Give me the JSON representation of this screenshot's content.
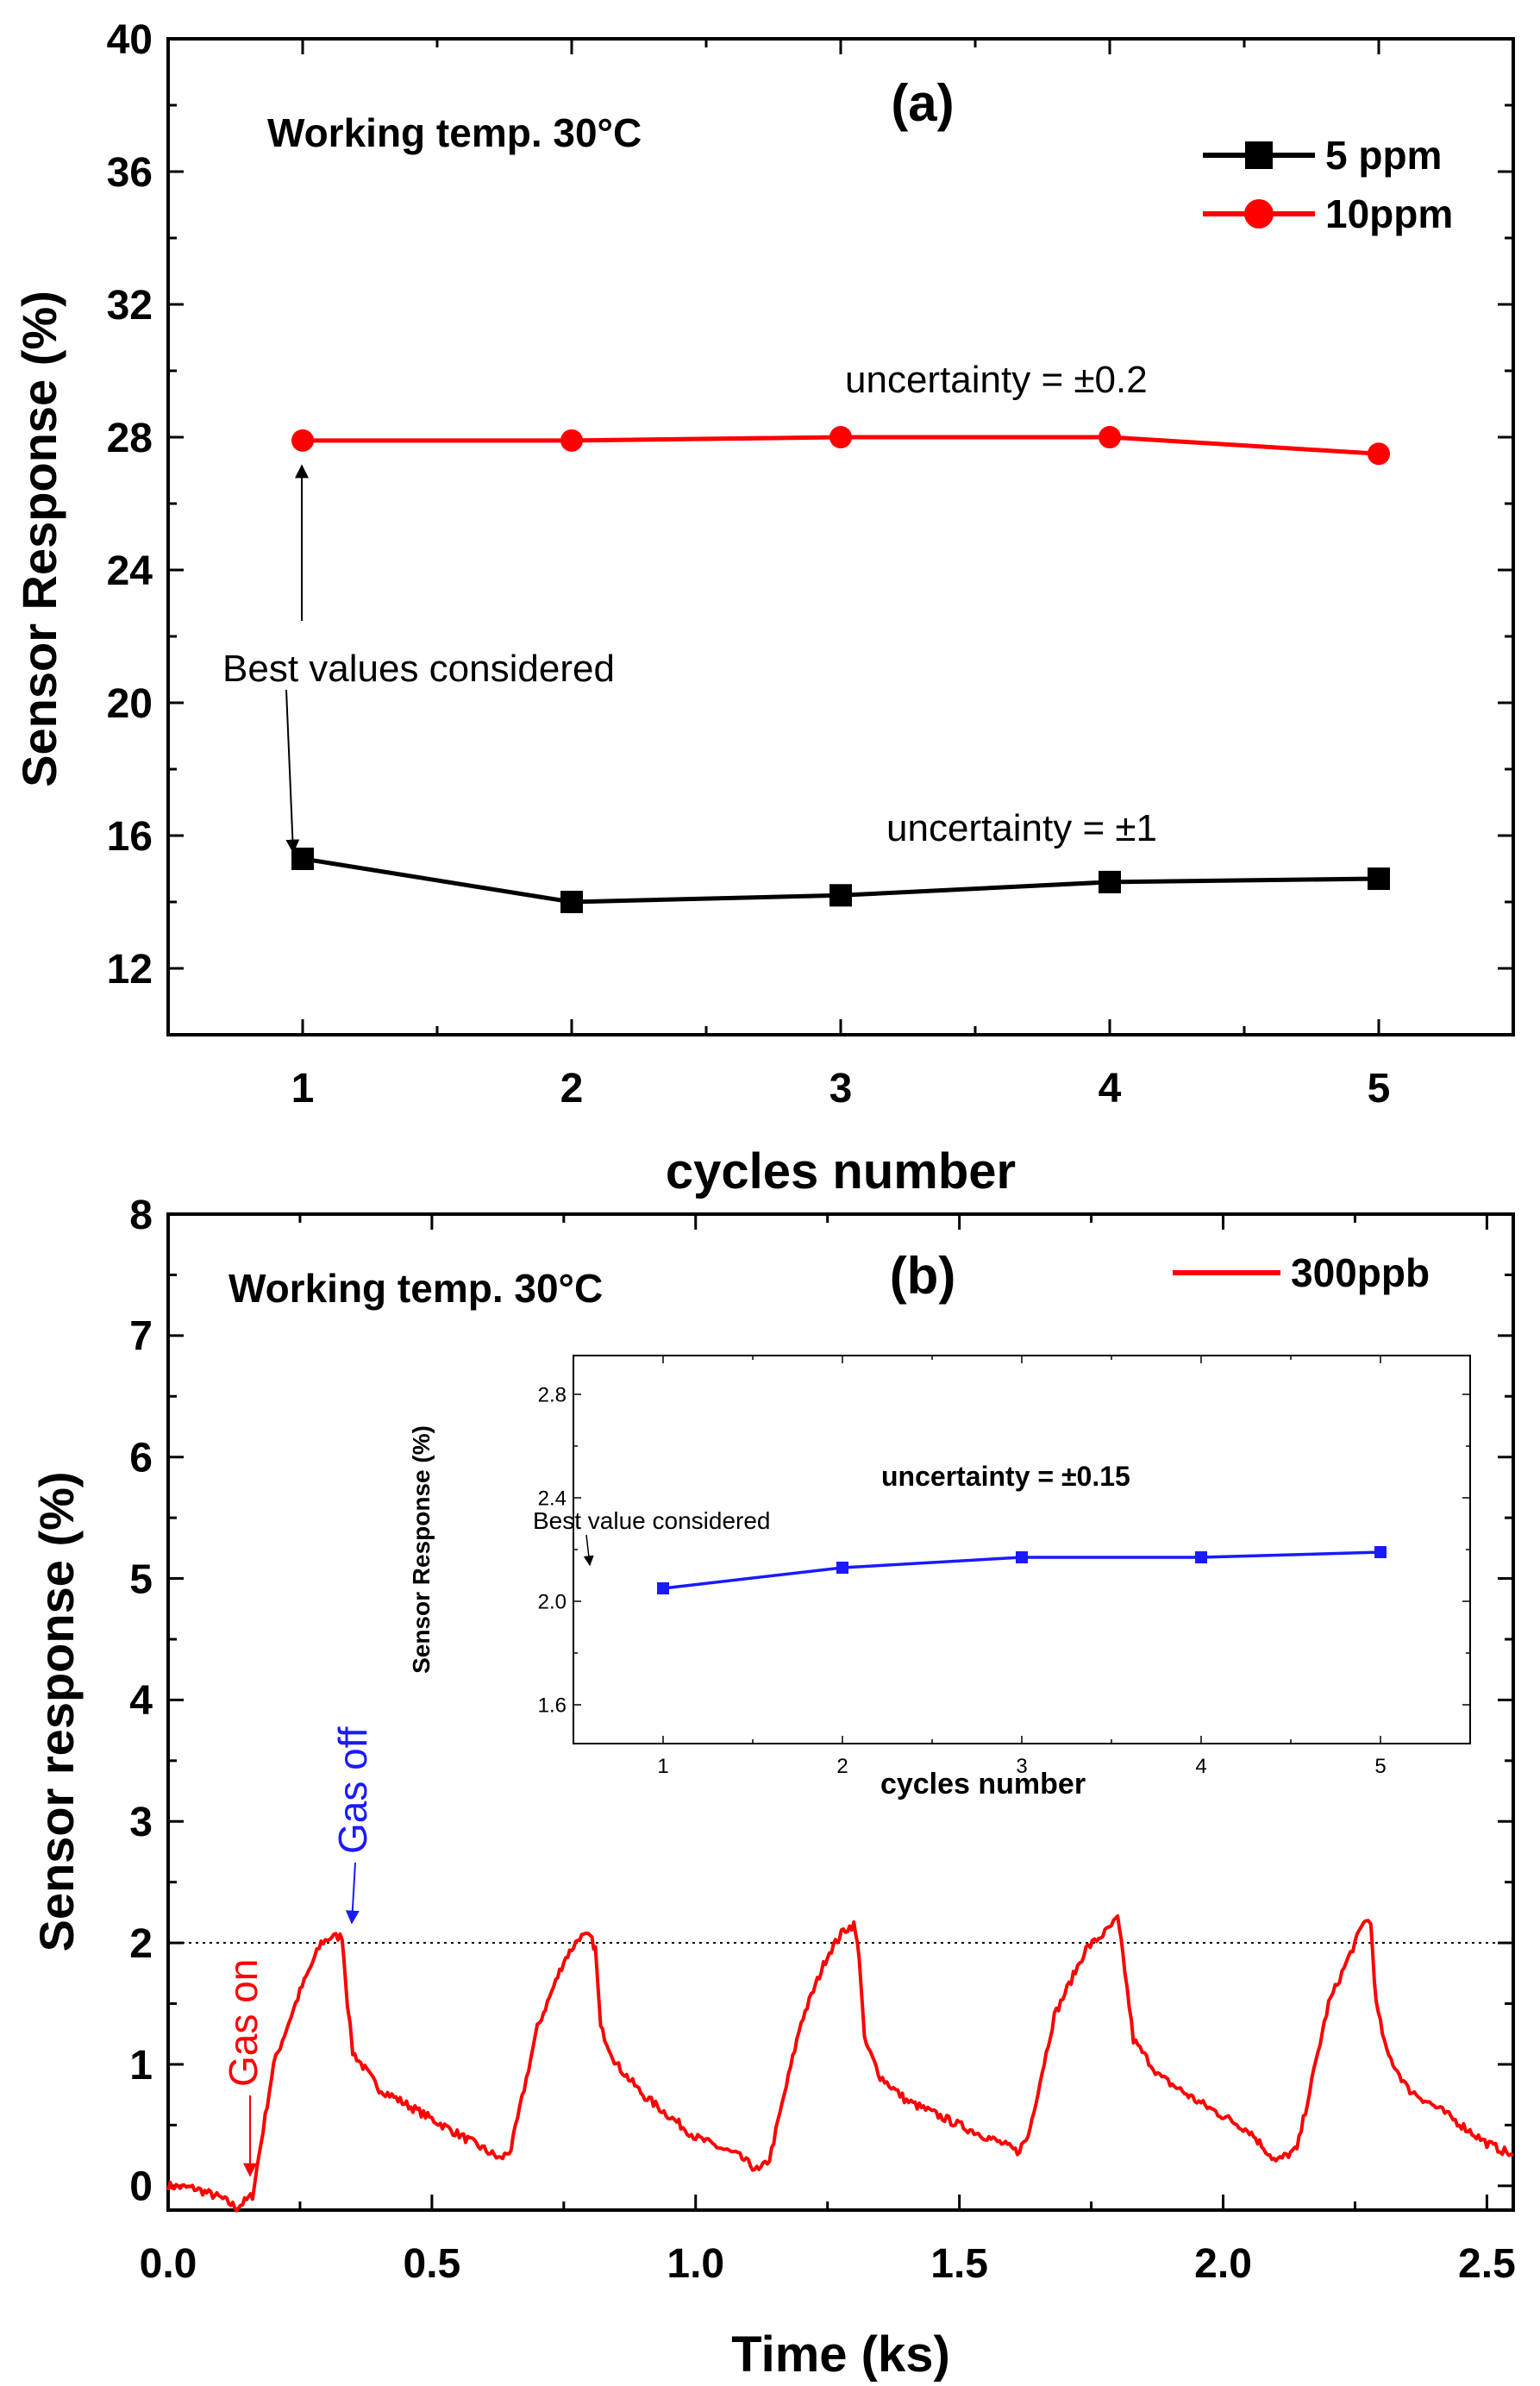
{
  "chart_data": [
    {
      "type": "line",
      "panel_label": "(a)",
      "annotation_temp": "Working temp. 30°C",
      "xlabel": "cycles number",
      "ylabel": "Sensor Response (%)",
      "xlim": [
        0.5,
        5.5
      ],
      "ylim": [
        10,
        40
      ],
      "xticks": [
        1,
        2,
        3,
        4,
        5
      ],
      "yticks": [
        12,
        16,
        20,
        24,
        28,
        32,
        36,
        40
      ],
      "legend_position": "top-right",
      "series": [
        {
          "name": "5 ppm",
          "color": "#000000",
          "marker": "square",
          "x": [
            1,
            2,
            3,
            4,
            5
          ],
          "y": [
            15.3,
            14.0,
            14.2,
            14.6,
            14.7
          ]
        },
        {
          "name": "10ppm",
          "color": "#ff0000",
          "marker": "circle",
          "x": [
            1,
            2,
            3,
            4,
            5
          ],
          "y": [
            27.9,
            27.9,
            28.0,
            28.0,
            27.5
          ]
        }
      ],
      "annotations": {
        "uncertainty_10ppm": "uncertainty = ±0.2",
        "uncertainty_5ppm": "uncertainty    = ±1",
        "best_values": "Best values considered"
      }
    },
    {
      "type": "line",
      "panel_label": "(b)",
      "annotation_temp": "Working temp. 30°C",
      "xlabel": "Time (ks)",
      "ylabel": "Sensor response (%)",
      "xlim": [
        0.0,
        2.55
      ],
      "ylim": [
        -0.2,
        8
      ],
      "xticks": [
        0.0,
        0.5,
        1.0,
        1.5,
        2.0,
        2.5
      ],
      "yticks": [
        0,
        1,
        2,
        3,
        4,
        5,
        6,
        7,
        8
      ],
      "reference_line_y": 2,
      "legend_position": "top-right",
      "series": [
        {
          "name": "300ppb",
          "color": "#ff0000",
          "x": [
            0.0,
            0.05,
            0.1,
            0.13,
            0.16,
            0.2,
            0.25,
            0.29,
            0.31,
            0.33,
            0.34,
            0.35,
            0.4,
            0.5,
            0.58,
            0.63,
            0.65,
            0.7,
            0.75,
            0.78,
            0.8,
            0.81,
            0.82,
            0.85,
            0.9,
            1.0,
            1.08,
            1.12,
            1.14,
            1.2,
            1.25,
            1.28,
            1.3,
            1.31,
            1.32,
            1.35,
            1.4,
            1.5,
            1.58,
            1.61,
            1.63,
            1.68,
            1.74,
            1.78,
            1.8,
            1.81,
            1.83,
            1.88,
            1.95,
            2.05,
            2.1,
            2.14,
            2.2,
            2.25,
            2.27,
            2.28,
            2.29,
            2.31,
            2.35,
            2.42,
            2.5,
            2.55
          ],
          "y": [
            0.0,
            -0.02,
            -0.1,
            -0.18,
            -0.08,
            1.0,
            1.6,
            2.0,
            2.05,
            2.05,
            1.5,
            1.1,
            0.8,
            0.55,
            0.35,
            0.22,
            0.3,
            1.3,
            1.85,
            2.05,
            2.05,
            1.95,
            1.3,
            1.0,
            0.75,
            0.4,
            0.25,
            0.12,
            0.22,
            1.35,
            1.9,
            2.1,
            2.15,
            1.9,
            1.2,
            0.9,
            0.7,
            0.5,
            0.35,
            0.28,
            0.4,
            1.4,
            1.95,
            2.1,
            2.2,
            1.9,
            1.2,
            0.9,
            0.7,
            0.45,
            0.2,
            0.3,
            1.5,
            2.0,
            2.2,
            2.15,
            1.5,
            1.1,
            0.8,
            0.6,
            0.35,
            0.25
          ]
        }
      ],
      "annotations": {
        "gas_on": "Gas on",
        "gas_off": "Gas off"
      },
      "inset": {
        "type": "line",
        "xlabel": "cycles number",
        "ylabel": "Sensor Response (%)",
        "xlim": [
          0.5,
          5.5
        ],
        "ylim": [
          1.45,
          2.95
        ],
        "xticks": [
          1,
          2,
          3,
          4,
          5
        ],
        "yticks": [
          1.6,
          2.0,
          2.4,
          2.8
        ],
        "series": [
          {
            "name": "300ppb",
            "color": "#1a1aff",
            "marker": "square",
            "x": [
              1,
              2,
              3,
              4,
              5
            ],
            "y": [
              2.05,
              2.13,
              2.17,
              2.17,
              2.19
            ]
          }
        ],
        "annotations": {
          "uncertainty": "uncertainty = ±0.15",
          "best_value": "Best value considered"
        }
      }
    }
  ]
}
